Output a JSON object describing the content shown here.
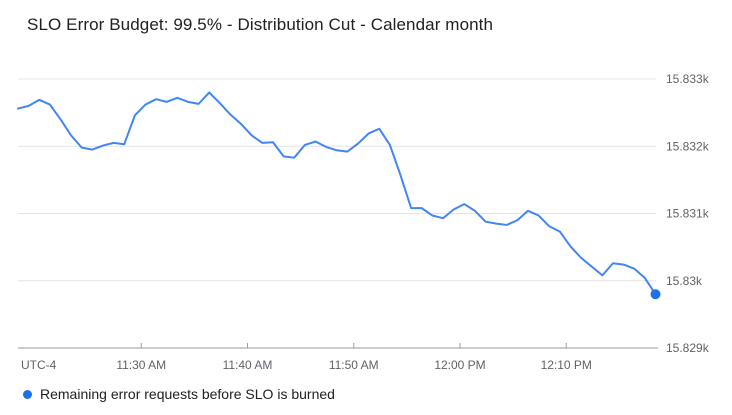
{
  "header": {
    "title": "SLO Error Budget: 99.5% - Distribution Cut - Calendar month"
  },
  "legend": {
    "items": [
      {
        "label": "Remaining error requests before SLO is burned",
        "color": "#1a73e8"
      }
    ]
  },
  "colors": {
    "line": "#4285f4",
    "end_dot": "#1a73e8",
    "gridline": "#e4e4e4",
    "axis": "#9a9a9a",
    "axis_text": "#5f6368",
    "title_text": "#212121",
    "background": "#ffffff"
  },
  "chart_data": {
    "type": "line",
    "title": "SLO Error Budget: 99.5% - Distribution Cut - Calendar month",
    "xlabel": "",
    "ylabel": "",
    "grid": true,
    "legend_position": "bottom",
    "x_axis": {
      "timezone_label": "UTC-4",
      "tick_labels": [
        "11:30 AM",
        "11:40 AM",
        "11:50 AM",
        "12:00 PM",
        "12:10 PM"
      ],
      "start_time": "11:18 AM",
      "end_time": "12:18 PM",
      "interval_minutes": 1
    },
    "y_axis": {
      "tick_labels": [
        "15.833k",
        "15.832k",
        "15.831k",
        "15.83k",
        "15.829k"
      ],
      "tick_values": [
        15833,
        15832,
        15831,
        15830,
        15829
      ],
      "range": [
        15829,
        15833
      ]
    },
    "series": [
      {
        "name": "Remaining error requests before SLO is burned",
        "color": "#4285f4",
        "values": [
          15832.56,
          15832.6,
          15832.69,
          15832.62,
          15832.4,
          15832.16,
          15831.98,
          15831.95,
          15832.01,
          15832.05,
          15832.03,
          15832.46,
          15832.62,
          15832.7,
          15832.66,
          15832.72,
          15832.66,
          15832.63,
          15832.8,
          15832.64,
          15832.47,
          15832.33,
          15832.16,
          15832.05,
          15832.06,
          15831.85,
          15831.83,
          15832.02,
          15832.07,
          15831.99,
          15831.94,
          15831.92,
          15832.04,
          15832.19,
          15832.26,
          15832.02,
          15831.57,
          15831.08,
          15831.08,
          15830.97,
          15830.93,
          15831.06,
          15831.14,
          15831.04,
          15830.88,
          15830.85,
          15830.83,
          15830.9,
          15831.04,
          15830.97,
          15830.81,
          15830.73,
          15830.51,
          15830.34,
          15830.21,
          15830.08,
          15830.26,
          15830.24,
          15830.18,
          15830.04,
          15829.8
        ]
      }
    ],
    "end_marker": {
      "time": "12:18 PM",
      "value": 15829.8,
      "color": "#1a73e8"
    }
  }
}
